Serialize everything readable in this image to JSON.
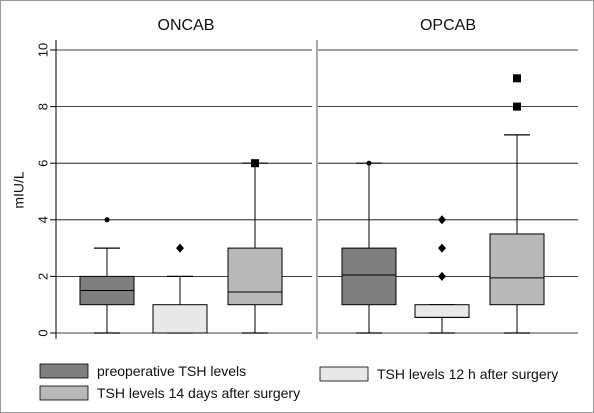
{
  "chart_data": {
    "type": "box",
    "panels": [
      {
        "title": "ONCAB",
        "boxes": [
          {
            "series": "preoperative TSH levels",
            "min": 0,
            "q1": 1,
            "median": 1.5,
            "q3": 2,
            "max": 3,
            "outliers": [
              4
            ]
          },
          {
            "series": "TSH levels 12 h after surgery",
            "min": 0,
            "q1": 0,
            "median": 0,
            "q3": 1,
            "max": 2,
            "outliers": [
              3
            ]
          },
          {
            "series": "TSH levels 14 days after surgery",
            "min": 0,
            "q1": 1,
            "median": 1.45,
            "q3": 3,
            "max": 6,
            "outliers": [
              6
            ]
          }
        ]
      },
      {
        "title": "OPCAB",
        "boxes": [
          {
            "series": "preoperative TSH levels",
            "min": 0,
            "q1": 1,
            "median": 2.05,
            "q3": 3,
            "max": 6,
            "outliers": [
              6
            ]
          },
          {
            "series": "TSH levels 12 h after surgery",
            "min": 0,
            "q1": 0.55,
            "median": 0.55,
            "q3": 1,
            "max": 1,
            "outliers": [
              2,
              3,
              4
            ]
          },
          {
            "series": "TSH levels 14 days after surgery",
            "min": 0,
            "q1": 1,
            "median": 1.95,
            "q3": 3.5,
            "max": 7,
            "outliers": [
              8,
              9
            ]
          }
        ]
      }
    ],
    "ylabel": "mIU/L",
    "ylim": [
      0,
      10
    ],
    "yticks": [
      0,
      2,
      4,
      6,
      8,
      10
    ],
    "grid": true,
    "legend_position": "bottom",
    "legend": [
      {
        "label": "preoperative TSH levels",
        "color": "#7f7f7f",
        "marker": "circle"
      },
      {
        "label": "TSH levels 12 h after surgery",
        "color": "#e8e8e8",
        "marker": "diamond"
      },
      {
        "label": "TSH levels 14 days after surgery",
        "color": "#b8b8b8",
        "marker": "square"
      }
    ]
  }
}
